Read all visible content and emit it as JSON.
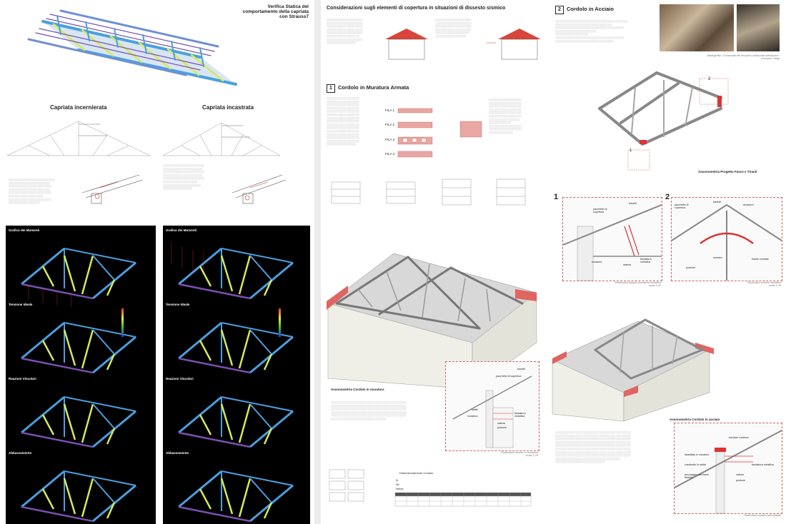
{
  "left": {
    "title": [
      "Verifica Statica del",
      "comportamento della capriata con Strauss7"
    ],
    "truss_left_title": "Capriata incernierata",
    "truss_right_title": "Capriata incastrata",
    "fem_panels": [
      {
        "label": "Grafico dei Momenti"
      },
      {
        "label": "Tensione Ideale"
      },
      {
        "label": "Reazioni Vincolari"
      },
      {
        "label": "Abbassamento"
      }
    ]
  },
  "right": {
    "main_title": "Considerazioni sugli elementi di copertura in situazioni di dissesto sismico",
    "section1": {
      "num": "1",
      "title": "Cordolo in Muratura Armata"
    },
    "section2": {
      "num": "2",
      "title": "Cordolo in Acciaio"
    },
    "fila_labels": [
      "FILA 1",
      "FILA 2",
      "FILA 3",
      "FILA 4"
    ],
    "axo_murature": "Assonometria Cordolo in muratura",
    "axo_progetto": "Assonometria Progetto Fasce e Tiranti",
    "axo_acciaio": "Assonometria Cordolo in acciaio",
    "callouts": [
      "1",
      "2"
    ],
    "photo_caption": [
      "Bibliografia: \"Il manuale del recupero strutturale antisismico\"",
      "Giovanni Cangi"
    ],
    "detail1_caption": [
      "Particolare doppia fasciatura metallica",
      "scala 1:20"
    ],
    "detail2_caption": [
      "Particolare innesto metallico",
      "scala 1:20"
    ],
    "detail_mur_caption": [
      "Particolare cordolo in muratura",
      "scala 1:20"
    ],
    "detail_acc_caption": [
      "Particolare cordolo perimetrale",
      "scala 1:20"
    ],
    "detail1_labels": [
      "pacchetto di copertura",
      "travetti",
      "muratura",
      "catena",
      "fasciatura metallica"
    ],
    "detail2_labels": [
      "pacchetto di copertura",
      "travetti",
      "arcarecci",
      "puntone",
      "monaco",
      "tirante centrale"
    ],
    "detail_mur_labels": [
      "pacchetto di copertura",
      "travetti",
      "staffe",
      "muratura",
      "catena",
      "puntone",
      "fasciatura metallica"
    ],
    "detail_acc_labels": [
      "tubolare continuo",
      "tassellato in muratura",
      "cuscinetto in malta",
      "ancoraggio con barre filettate",
      "fasciatura metallica",
      "catena",
      "puntone"
    ],
    "calc_title": "Dimensionamento Cordolo",
    "calc_lines": [
      "N",
      "Nc",
      "Nmax"
    ]
  }
}
